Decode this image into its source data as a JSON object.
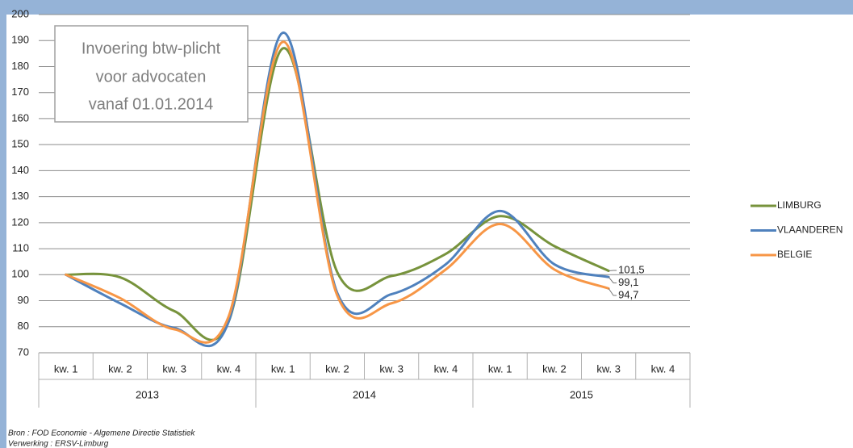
{
  "chart_data": {
    "type": "line",
    "annotation": [
      "Invoering btw-plicht",
      "voor advocaten",
      "vanaf 01.01.2014"
    ],
    "categories": [
      "kw. 1",
      "kw. 2",
      "kw. 3",
      "kw. 4",
      "kw. 1",
      "kw. 2",
      "kw. 3",
      "kw. 4",
      "kw. 1",
      "kw. 2",
      "kw. 3",
      "kw. 4"
    ],
    "category_groups": [
      "2013",
      "2014",
      "2015"
    ],
    "series": [
      {
        "name": "LIMBURG",
        "color": "#77933c",
        "values": [
          100,
          99,
          86,
          82,
          187,
          101,
          99.5,
          108,
          122.5,
          111,
          101.5,
          null
        ],
        "value_labels": [
          null,
          null,
          null,
          null,
          null,
          null,
          null,
          null,
          null,
          null,
          "101,5",
          null
        ]
      },
      {
        "name": "VLAANDEREN",
        "color": "#4f81bd",
        "values": [
          100,
          89,
          79.5,
          82,
          193,
          93,
          92.5,
          104,
          124.5,
          104,
          99.1,
          null
        ],
        "value_labels": [
          null,
          null,
          null,
          null,
          null,
          null,
          null,
          null,
          null,
          null,
          "99,1",
          null
        ]
      },
      {
        "name": "BELGIE",
        "color": "#f79646",
        "values": [
          100,
          91,
          79,
          84,
          189.5,
          92,
          89,
          102,
          119.5,
          102,
          94.7,
          null
        ],
        "value_labels": [
          null,
          null,
          null,
          null,
          null,
          null,
          null,
          null,
          null,
          null,
          "94,7",
          null
        ]
      }
    ],
    "ylim": [
      70,
      200
    ],
    "yticks": [
      70,
      80,
      90,
      100,
      110,
      120,
      130,
      140,
      150,
      160,
      170,
      180,
      190,
      200
    ],
    "grid": true,
    "legend": "right",
    "footnotes": [
      "Bron : FOD Economie - Algemene Directie Statistiek",
      "Verwerking : ERSV-Limburg"
    ]
  }
}
